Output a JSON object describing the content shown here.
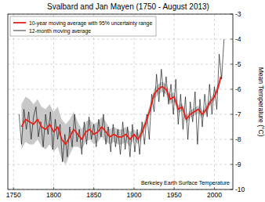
{
  "chart_data": {
    "type": "line",
    "title": "Svalbard and Jan Mayen (1750 - August 2013)",
    "y_label": "Mean Temperature (°C)",
    "annotation": "Berkeley Earth Surface Temperature",
    "xlim": [
      1743,
      2023
    ],
    "xticks": [
      1750,
      1800,
      1850,
      1900,
      1950,
      2000
    ],
    "ylim": [
      -10,
      -3
    ],
    "yticks": [
      -10,
      -9,
      -8,
      -7,
      -6,
      -5,
      -4,
      -3
    ],
    "grid": true,
    "legend": "upper left",
    "series": [
      {
        "name": "10-year moving average with 95% uncertainty range",
        "color": "#e8221b",
        "x": [
          1760,
          1765,
          1770,
          1775,
          1780,
          1785,
          1790,
          1795,
          1800,
          1805,
          1810,
          1815,
          1820,
          1825,
          1830,
          1835,
          1840,
          1845,
          1850,
          1855,
          1860,
          1865,
          1870,
          1875,
          1880,
          1885,
          1890,
          1895,
          1900,
          1905,
          1910,
          1915,
          1920,
          1925,
          1930,
          1935,
          1940,
          1945,
          1950,
          1955,
          1960,
          1965,
          1970,
          1975,
          1980,
          1985,
          1990,
          1995,
          2000,
          2005,
          2008
        ],
        "values": [
          -7.5,
          -7.2,
          -7.3,
          -7.4,
          -7.2,
          -7.5,
          -7.6,
          -7.4,
          -7.7,
          -7.5,
          -8.0,
          -8.2,
          -7.9,
          -7.6,
          -7.8,
          -8.0,
          -7.7,
          -7.6,
          -7.8,
          -7.7,
          -7.5,
          -7.7,
          -7.9,
          -7.8,
          -7.9,
          -7.9,
          -7.8,
          -8.0,
          -7.8,
          -8.0,
          -7.7,
          -7.3,
          -6.8,
          -6.2,
          -6.0,
          -5.9,
          -6.0,
          -6.4,
          -6.3,
          -6.8,
          -6.7,
          -7.2,
          -7.0,
          -6.9,
          -6.8,
          -7.0,
          -6.8,
          -6.5,
          -6.3,
          -5.9,
          -5.5
        ],
        "lower": [
          -8.4,
          -8.1,
          -8.2,
          -8.2,
          -8.0,
          -8.3,
          -8.4,
          -8.2,
          -8.5,
          -8.3,
          -8.8,
          -9.0,
          -8.6,
          -8.3,
          -8.3,
          -8.4,
          -8.1,
          -8.0,
          -8.2,
          -8.1,
          -7.9,
          -8.1,
          -8.2,
          -8.1,
          -8.2,
          -8.2,
          -8.1,
          -8.3,
          -8.0,
          -8.2,
          -7.9,
          -7.5,
          -7.0,
          -6.4,
          -6.2,
          -6.1,
          -6.2,
          -6.6,
          -6.5,
          -6.95,
          -6.85,
          -7.35,
          -7.15,
          -7.05,
          -6.95,
          -7.15,
          -6.95,
          -6.65,
          -6.45,
          -6.05,
          -5.65
        ],
        "upper": [
          -6.6,
          -6.3,
          -6.4,
          -6.6,
          -6.4,
          -6.7,
          -6.8,
          -6.6,
          -6.9,
          -6.7,
          -7.2,
          -7.4,
          -7.2,
          -6.9,
          -7.3,
          -7.6,
          -7.3,
          -7.2,
          -7.4,
          -7.3,
          -7.1,
          -7.3,
          -7.6,
          -7.5,
          -7.6,
          -7.6,
          -7.5,
          -7.7,
          -7.6,
          -7.8,
          -7.5,
          -7.1,
          -6.6,
          -6.0,
          -5.8,
          -5.7,
          -5.8,
          -6.2,
          -6.1,
          -6.65,
          -6.55,
          -7.05,
          -6.85,
          -6.75,
          -6.65,
          -6.85,
          -6.65,
          -6.35,
          -6.15,
          -5.75,
          -5.35
        ]
      },
      {
        "name": "12-month moving average",
        "color": "#000000",
        "x": [
          1757,
          1760,
          1763,
          1766,
          1769,
          1772,
          1775,
          1778,
          1781,
          1784,
          1787,
          1790,
          1793,
          1796,
          1799,
          1802,
          1805,
          1808,
          1811,
          1814,
          1817,
          1820,
          1823,
          1826,
          1829,
          1832,
          1835,
          1838,
          1841,
          1844,
          1847,
          1850,
          1853,
          1856,
          1859,
          1862,
          1865,
          1868,
          1871,
          1874,
          1877,
          1880,
          1883,
          1886,
          1889,
          1892,
          1895,
          1898,
          1901,
          1904,
          1907,
          1910,
          1913,
          1916,
          1919,
          1922,
          1925,
          1928,
          1931,
          1934,
          1937,
          1940,
          1943,
          1946,
          1949,
          1952,
          1955,
          1958,
          1961,
          1964,
          1967,
          1970,
          1973,
          1976,
          1979,
          1982,
          1985,
          1988,
          1991,
          1994,
          1997,
          2000,
          2003,
          2006,
          2009,
          2012
        ],
        "values": [
          -7.0,
          -8.2,
          -6.8,
          -7.6,
          -6.9,
          -8.0,
          -7.1,
          -6.7,
          -7.9,
          -7.3,
          -8.3,
          -7.0,
          -7.8,
          -6.9,
          -8.4,
          -7.2,
          -8.0,
          -7.4,
          -8.9,
          -7.8,
          -8.7,
          -7.5,
          -8.3,
          -7.0,
          -8.1,
          -7.6,
          -8.6,
          -7.3,
          -8.2,
          -7.1,
          -8.0,
          -7.4,
          -8.3,
          -7.2,
          -7.9,
          -7.0,
          -8.2,
          -7.5,
          -8.5,
          -7.4,
          -8.3,
          -7.6,
          -8.6,
          -7.3,
          -8.4,
          -7.5,
          -8.7,
          -7.4,
          -8.5,
          -7.6,
          -8.6,
          -7.3,
          -8.2,
          -7.0,
          -8.0,
          -6.2,
          -6.9,
          -5.4,
          -6.5,
          -5.2,
          -6.3,
          -5.5,
          -6.6,
          -5.8,
          -7.0,
          -5.6,
          -7.4,
          -6.2,
          -7.6,
          -6.3,
          -8.0,
          -6.5,
          -7.3,
          -6.1,
          -8.2,
          -6.4,
          -7.5,
          -6.2,
          -7.1,
          -5.8,
          -7.0,
          -5.9,
          -6.8,
          -4.6,
          -5.6,
          -4.0
        ]
      }
    ]
  }
}
